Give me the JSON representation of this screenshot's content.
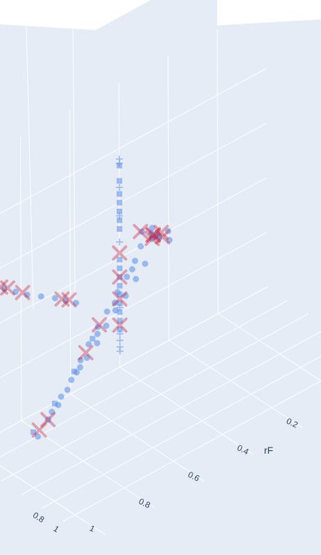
{
  "chart_data": {
    "type": "scatter3d",
    "title": "",
    "background_color": "#e5ecf6",
    "grid_color": "#ffffff",
    "axes": {
      "x": {
        "label": "rF",
        "ticks": [
          "0.2",
          "0.4",
          "0.6",
          "0.8",
          "1"
        ],
        "range": [
          0,
          1
        ]
      },
      "y": {
        "label": "",
        "ticks": [
          "0.8",
          "1"
        ],
        "range": [
          0,
          1
        ]
      },
      "z": {
        "label": "",
        "ticks": [],
        "range": [
          0,
          1
        ]
      }
    },
    "series": [
      {
        "marker": "circle",
        "color": "#5b8ee6",
        "opacity": 0.55,
        "points": [
          [
            0.35,
            0.1,
            0.62
          ],
          [
            0.32,
            0.12,
            0.6
          ],
          [
            0.3,
            0.15,
            0.58
          ],
          [
            0.33,
            0.18,
            0.61
          ],
          [
            0.28,
            0.2,
            0.57
          ],
          [
            0.36,
            0.22,
            0.63
          ],
          [
            0.4,
            0.25,
            0.55
          ],
          [
            0.45,
            0.28,
            0.52
          ],
          [
            0.5,
            0.3,
            0.48
          ],
          [
            0.55,
            0.32,
            0.45
          ],
          [
            0.6,
            0.35,
            0.42
          ],
          [
            0.65,
            0.38,
            0.38
          ],
          [
            0.7,
            0.4,
            0.35
          ],
          [
            0.75,
            0.42,
            0.32
          ],
          [
            0.8,
            0.45,
            0.28
          ],
          [
            0.85,
            0.48,
            0.25
          ],
          [
            0.9,
            0.5,
            0.22
          ],
          [
            0.95,
            0.52,
            0.18
          ],
          [
            0.38,
            0.16,
            0.59
          ],
          [
            0.42,
            0.2,
            0.56
          ],
          [
            0.47,
            0.24,
            0.53
          ],
          [
            0.52,
            0.27,
            0.5
          ],
          [
            0.58,
            0.31,
            0.46
          ],
          [
            0.63,
            0.34,
            0.43
          ],
          [
            0.68,
            0.37,
            0.39
          ],
          [
            0.73,
            0.41,
            0.36
          ],
          [
            0.78,
            0.44,
            0.31
          ],
          [
            0.83,
            0.46,
            0.27
          ],
          [
            0.88,
            0.49,
            0.24
          ],
          [
            0.3,
            0.08,
            0.6
          ],
          [
            0.26,
            0.14,
            0.58
          ],
          [
            0.34,
            0.24,
            0.64
          ],
          [
            0.44,
            0.22,
            0.54
          ],
          [
            0.54,
            0.29,
            0.47
          ],
          [
            0.64,
            0.36,
            0.41
          ],
          [
            0.74,
            0.43,
            0.34
          ]
        ]
      },
      {
        "marker": "square",
        "color": "#5b8ee6",
        "opacity": 0.55,
        "points": [
          [
            0.42,
            0.05,
            0.95
          ],
          [
            0.42,
            0.05,
            0.88
          ],
          [
            0.42,
            0.05,
            0.82
          ],
          [
            0.42,
            0.05,
            0.78
          ],
          [
            0.42,
            0.05,
            0.74
          ],
          [
            0.42,
            0.05,
            0.7
          ],
          [
            0.42,
            0.05,
            0.66
          ],
          [
            0.42,
            0.05,
            0.52
          ],
          [
            0.42,
            0.05,
            0.48
          ],
          [
            0.42,
            0.05,
            0.44
          ],
          [
            0.42,
            0.05,
            0.4
          ],
          [
            0.42,
            0.05,
            0.36
          ],
          [
            0.42,
            0.05,
            0.32
          ],
          [
            0.42,
            0.05,
            0.28
          ],
          [
            0.42,
            0.05,
            0.24
          ],
          [
            0.42,
            0.05,
            0.2
          ],
          [
            0.96,
            0.5,
            0.2
          ],
          [
            0.86,
            0.47,
            0.26
          ],
          [
            0.76,
            0.42,
            0.33
          ],
          [
            0.66,
            0.36,
            0.4
          ]
        ]
      },
      {
        "marker": "cross",
        "color": "#5b8ee6",
        "opacity": 0.6,
        "points": [
          [
            0.42,
            0.05,
            0.98
          ],
          [
            0.42,
            0.05,
            0.96
          ],
          [
            0.42,
            0.05,
            0.85
          ],
          [
            0.42,
            0.05,
            0.72
          ],
          [
            0.42,
            0.05,
            0.6
          ],
          [
            0.42,
            0.05,
            0.3
          ],
          [
            0.42,
            0.05,
            0.18
          ],
          [
            0.42,
            0.05,
            0.15
          ],
          [
            0.42,
            0.05,
            0.12
          ],
          [
            0.42,
            0.05,
            0.1
          ]
        ]
      },
      {
        "marker": "x",
        "color": "#c8102e",
        "opacity": 0.35,
        "points": [
          [
            0.32,
            0.14,
            0.6
          ],
          [
            0.3,
            0.18,
            0.59
          ],
          [
            0.35,
            0.2,
            0.62
          ],
          [
            0.28,
            0.12,
            0.58
          ],
          [
            0.33,
            0.16,
            0.61
          ],
          [
            0.36,
            0.11,
            0.63
          ],
          [
            0.42,
            0.05,
            0.55
          ],
          [
            0.42,
            0.05,
            0.44
          ],
          [
            0.42,
            0.05,
            0.34
          ],
          [
            0.42,
            0.05,
            0.22
          ],
          [
            0.62,
            0.33,
            0.43
          ],
          [
            0.7,
            0.39,
            0.37
          ],
          [
            0.9,
            0.5,
            0.22
          ],
          [
            0.94,
            0.51,
            0.2
          ]
        ]
      },
      {
        "marker": "circle",
        "color": "#5b8ee6",
        "opacity": 0.55,
        "points": [
          [
            0.98,
            0.2,
            0.78
          ],
          [
            0.96,
            0.22,
            0.77
          ],
          [
            0.93,
            0.26,
            0.75
          ],
          [
            0.9,
            0.3,
            0.73
          ],
          [
            0.86,
            0.34,
            0.71
          ],
          [
            0.82,
            0.38,
            0.69
          ],
          [
            0.79,
            0.41,
            0.67
          ],
          [
            0.76,
            0.44,
            0.65
          ]
        ]
      },
      {
        "marker": "x",
        "color": "#c8102e",
        "opacity": 0.35,
        "points": [
          [
            0.97,
            0.21,
            0.78
          ],
          [
            0.95,
            0.23,
            0.77
          ],
          [
            0.91,
            0.28,
            0.74
          ],
          [
            0.8,
            0.4,
            0.68
          ],
          [
            0.78,
            0.42,
            0.67
          ]
        ]
      }
    ]
  }
}
